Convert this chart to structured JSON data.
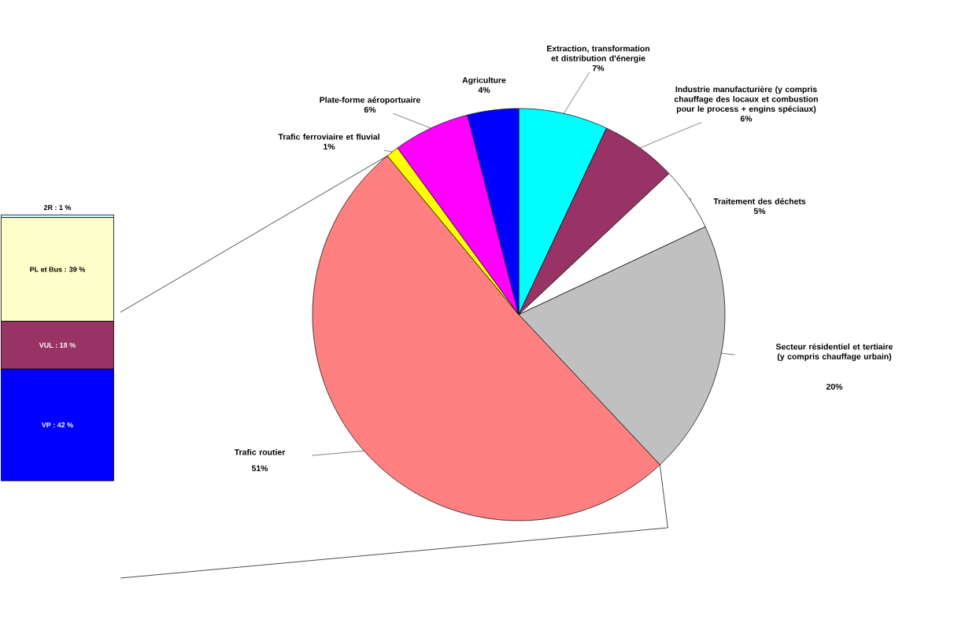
{
  "chart_data": [
    {
      "type": "pie",
      "categories": [
        "Extraction, transformation et distribution d'énergie",
        "Industrie manufacturière (y compris chauffage des locaux et combustion pour le process + engins spéciaux)",
        "Traitement des déchets",
        "Secteur résidentiel et tertiaire (y compris chauffage urbain)",
        "Trafic routier",
        "Trafic ferroviaire et fluvial",
        "Plate-forme aéroportuaire",
        "Agriculture"
      ],
      "values": [
        7,
        6,
        5,
        20,
        51,
        1,
        6,
        4
      ],
      "colors": [
        "#00ffff",
        "#993366",
        "#ffffff",
        "#c0c0c0",
        "#ff8080",
        "#ffff00",
        "#ff00ff",
        "#0000ff"
      ],
      "value_labels": [
        "7%",
        "6%",
        "5%",
        "20%",
        "51%",
        "1%",
        "6%",
        "4%"
      ]
    },
    {
      "type": "bar",
      "stacked": true,
      "categories": [
        null
      ],
      "ylim": [
        0,
        100
      ],
      "series": [
        {
          "color": "#0000ff",
          "values": [
            42
          ],
          "value_labels": [
            "VP : 42 %"
          ]
        },
        {
          "color": "#993366",
          "values": [
            18
          ],
          "value_labels": [
            "VUL : 18 %"
          ]
        },
        {
          "color": "#ffffcc",
          "values": [
            39
          ],
          "value_labels": [
            "PL et Bus : 39 %"
          ]
        },
        {
          "color": "#ccffff",
          "values": [
            1
          ],
          "value_labels": [
            "2R : 1 %"
          ]
        }
      ]
    }
  ]
}
